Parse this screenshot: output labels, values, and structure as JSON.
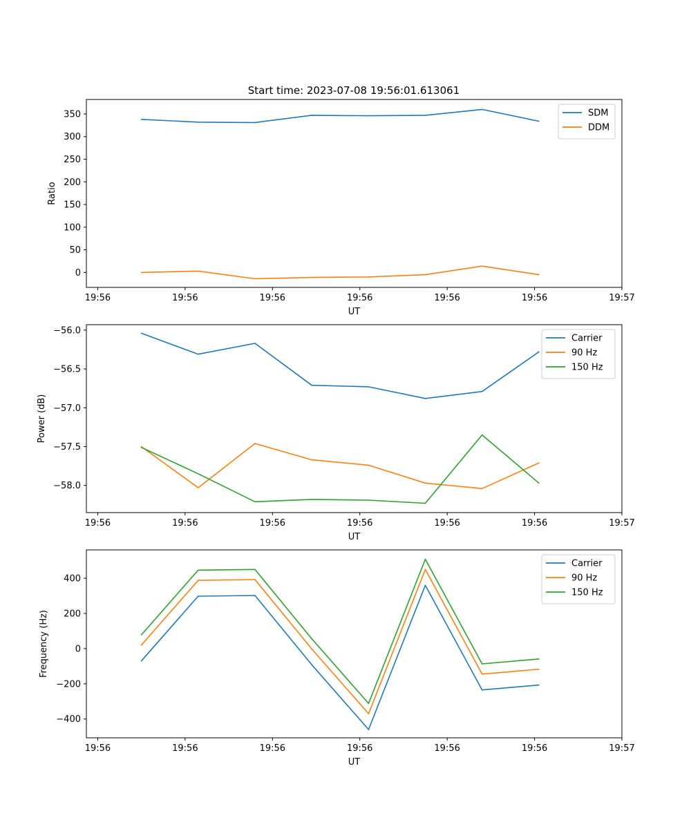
{
  "title": "Start time: 2023-07-08 19:56:01.613061",
  "colors": {
    "blue": "#1f77b4",
    "orange": "#ff7f0e",
    "green": "#2ca02c"
  },
  "chart_data": [
    {
      "type": "line",
      "title": "Start time: 2023-07-08 19:56:01.613061",
      "xlabel": "UT",
      "ylabel": "Ratio",
      "x": [
        0.5,
        1.15,
        1.8,
        2.45,
        3.1,
        3.75,
        4.4,
        5.05
      ],
      "xlim": [
        -0.13,
        6.0
      ],
      "x_ticks": [
        0,
        1,
        2,
        3,
        4,
        5,
        6
      ],
      "x_tick_labels": [
        "19:56",
        "19:56",
        "19:56",
        "19:56",
        "19:56",
        "19:56",
        "19:57"
      ],
      "ylim": [
        -33,
        382
      ],
      "y_ticks": [
        0,
        50,
        100,
        150,
        200,
        250,
        300,
        350
      ],
      "y_tick_labels": [
        "0",
        "50",
        "100",
        "150",
        "200",
        "250",
        "300",
        "350"
      ],
      "legend_position": "top-right",
      "series": [
        {
          "name": "SDM",
          "color": "#1f77b4",
          "values": [
            338,
            332,
            331,
            347,
            346,
            347,
            360,
            334
          ]
        },
        {
          "name": "DDM",
          "color": "#ff7f0e",
          "values": [
            0,
            3,
            -14,
            -11,
            -10,
            -5,
            14,
            -5
          ]
        }
      ]
    },
    {
      "type": "line",
      "title": "",
      "xlabel": "UT",
      "ylabel": "Power (dB)",
      "x": [
        0.5,
        1.15,
        1.8,
        2.45,
        3.1,
        3.75,
        4.4,
        5.05
      ],
      "xlim": [
        -0.13,
        6.0
      ],
      "x_ticks": [
        0,
        1,
        2,
        3,
        4,
        5,
        6
      ],
      "x_tick_labels": [
        "19:56",
        "19:56",
        "19:56",
        "19:56",
        "19:56",
        "19:56",
        "19:57"
      ],
      "ylim": [
        -58.35,
        -55.93
      ],
      "y_ticks": [
        -58.0,
        -57.5,
        -57.0,
        -56.5,
        -56.0
      ],
      "y_tick_labels": [
        "−58.0",
        "−57.5",
        "−57.0",
        "−56.5",
        "−56.0"
      ],
      "legend_position": "top-right",
      "series": [
        {
          "name": "Carrier",
          "color": "#1f77b4",
          "values": [
            -56.04,
            -56.31,
            -56.17,
            -56.71,
            -56.73,
            -56.88,
            -56.79,
            -56.28
          ]
        },
        {
          "name": "90 Hz",
          "color": "#ff7f0e",
          "values": [
            -57.5,
            -58.03,
            -57.46,
            -57.67,
            -57.74,
            -57.97,
            -58.04,
            -57.71
          ]
        },
        {
          "name": "150 Hz",
          "color": "#2ca02c",
          "values": [
            -57.51,
            -57.85,
            -58.21,
            -58.18,
            -58.19,
            -58.23,
            -57.35,
            -57.97
          ]
        }
      ]
    },
    {
      "type": "line",
      "title": "",
      "xlabel": "UT",
      "ylabel": "Frequency (Hz)",
      "x": [
        0.5,
        1.15,
        1.8,
        2.45,
        3.1,
        3.75,
        4.4,
        5.05
      ],
      "xlim": [
        -0.13,
        6.0
      ],
      "x_ticks": [
        0,
        1,
        2,
        3,
        4,
        5,
        6
      ],
      "x_tick_labels": [
        "19:56",
        "19:56",
        "19:56",
        "19:56",
        "19:56",
        "19:56",
        "19:57"
      ],
      "ylim": [
        -507,
        561
      ],
      "y_ticks": [
        -400,
        -200,
        0,
        200,
        400
      ],
      "y_tick_labels": [
        "−400",
        "−200",
        "0",
        "200",
        "400"
      ],
      "legend_position": "top-right",
      "series": [
        {
          "name": "Carrier",
          "color": "#1f77b4",
          "values": [
            -70,
            298,
            302,
            -92,
            -460,
            360,
            -235,
            -207
          ]
        },
        {
          "name": "90 Hz",
          "color": "#ff7f0e",
          "values": [
            20,
            388,
            392,
            -2,
            -370,
            450,
            -145,
            -117
          ]
        },
        {
          "name": "150 Hz",
          "color": "#2ca02c",
          "values": [
            78,
            446,
            450,
            56,
            -312,
            508,
            -87,
            -59
          ]
        }
      ]
    }
  ]
}
